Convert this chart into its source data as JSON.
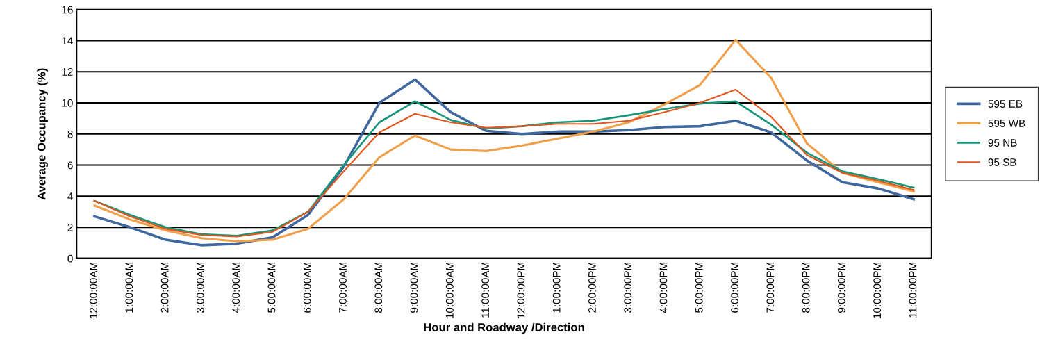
{
  "chart_data": {
    "type": "line",
    "xlabel": "Hour and Roadway /Direction",
    "ylabel": "Average Occupancy (%)",
    "categories": [
      "12:00:00AM",
      "1:00:00AM",
      "2:00:00AM",
      "3:00:00AM",
      "4:00:00AM",
      "5:00:00AM",
      "6:00:00AM",
      "7:00:00AM",
      "8:00:00AM",
      "9:00:00AM",
      "10:00:00AM",
      "11:00:00AM",
      "12:00:00PM",
      "1:00:00PM",
      "2:00:00PM",
      "3:00:00PM",
      "4:00:00PM",
      "5:00:00PM",
      "6:00:00PM",
      "7:00:00PM",
      "8:00:00PM",
      "9:00:00PM",
      "10:00:00PM",
      "11:00:00PM"
    ],
    "series": [
      {
        "name": "595 EB",
        "color": "#3f689f",
        "values": [
          2.7,
          2.0,
          1.2,
          0.85,
          0.95,
          1.35,
          2.8,
          5.9,
          10.0,
          11.5,
          9.4,
          8.2,
          8.0,
          8.15,
          8.15,
          8.25,
          8.45,
          8.5,
          8.85,
          8.1,
          6.3,
          4.9,
          4.5,
          3.8
        ]
      },
      {
        "name": "595 WB",
        "color": "#f0a04b",
        "values": [
          3.4,
          2.5,
          1.8,
          1.3,
          1.1,
          1.2,
          1.9,
          3.8,
          6.5,
          7.9,
          7.0,
          6.9,
          7.25,
          7.7,
          8.15,
          8.75,
          9.9,
          11.15,
          14.05,
          11.6,
          7.4,
          5.5,
          4.9,
          4.3
        ]
      },
      {
        "name": "95 NB",
        "color": "#13967a",
        "values": [
          3.7,
          2.8,
          2.0,
          1.55,
          1.45,
          1.8,
          3.0,
          6.0,
          8.75,
          10.1,
          8.9,
          8.35,
          8.5,
          8.75,
          8.85,
          9.2,
          9.6,
          9.95,
          10.1,
          8.6,
          6.8,
          5.6,
          5.1,
          4.55
        ]
      },
      {
        "name": "95 SB",
        "color": "#e0561e",
        "values": [
          3.7,
          2.7,
          1.9,
          1.5,
          1.4,
          1.7,
          3.0,
          5.6,
          8.1,
          9.3,
          8.75,
          8.4,
          8.5,
          8.65,
          8.65,
          8.85,
          9.4,
          10.0,
          10.85,
          9.1,
          6.65,
          5.5,
          5.0,
          4.4
        ]
      }
    ],
    "ylim": [
      0,
      16
    ],
    "yticks": [
      0,
      2,
      4,
      6,
      8,
      10,
      12,
      14,
      16
    ],
    "grid": "y",
    "legend": "right",
    "marker": "none",
    "line_style": "solid"
  }
}
